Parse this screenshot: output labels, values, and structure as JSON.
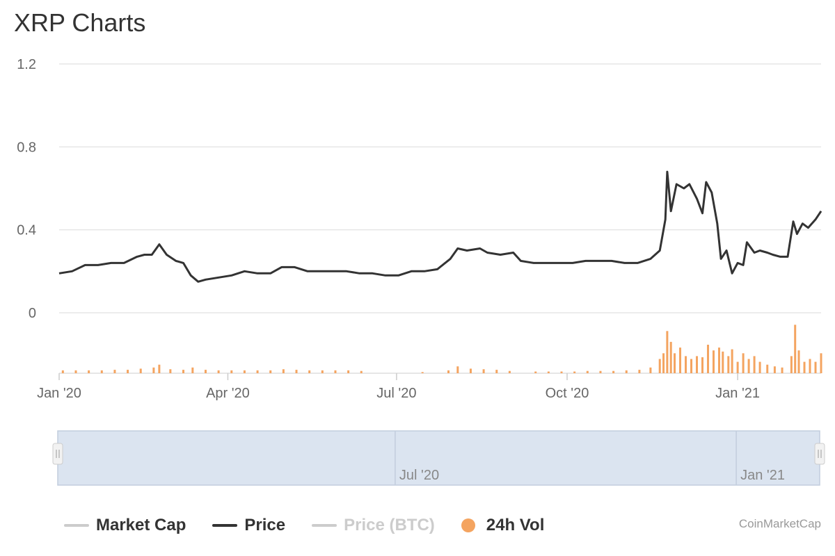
{
  "title": "XRP Charts",
  "credits": "CoinMarketCap",
  "colors": {
    "price": "#333333",
    "volume": "#f4a460",
    "grid": "#e6e6e6",
    "navigator_fill": "#dbe4f0",
    "navigator_border": "#c2cddd",
    "legend_inactive": "#cccccc"
  },
  "legend": [
    {
      "label": "Market Cap",
      "color": "#cccccc",
      "shape": "line",
      "active": true
    },
    {
      "label": "Price",
      "color": "#333333",
      "shape": "line",
      "active": true
    },
    {
      "label": "Price (BTC)",
      "color": "#cccccc",
      "shape": "line",
      "active": false
    },
    {
      "label": "24h Vol",
      "color": "#f4a460",
      "shape": "dot",
      "active": true
    }
  ],
  "navigator": {
    "labels": [
      "Jul '20",
      "Jan '21"
    ]
  },
  "chart_data": {
    "type": "line",
    "title": "XRP Charts",
    "x_start": "2020-01-01",
    "x_end": "2021-02-15",
    "ylim": [
      0,
      1.2
    ],
    "y_ticks": [
      "1.2",
      "0.8",
      "0.4",
      "0"
    ],
    "x_ticks": [
      "Jan '20",
      "Apr '20",
      "Jul '20",
      "Oct '20",
      "Jan '21"
    ],
    "grid": true,
    "legend_position": "bottom",
    "series": [
      {
        "name": "Price",
        "points": [
          [
            "2020-01-01",
            0.19
          ],
          [
            "2020-01-08",
            0.2
          ],
          [
            "2020-01-15",
            0.23
          ],
          [
            "2020-01-22",
            0.23
          ],
          [
            "2020-01-29",
            0.24
          ],
          [
            "2020-02-05",
            0.24
          ],
          [
            "2020-02-12",
            0.27
          ],
          [
            "2020-02-16",
            0.28
          ],
          [
            "2020-02-20",
            0.28
          ],
          [
            "2020-02-24",
            0.33
          ],
          [
            "2020-02-28",
            0.28
          ],
          [
            "2020-03-04",
            0.25
          ],
          [
            "2020-03-08",
            0.24
          ],
          [
            "2020-03-12",
            0.18
          ],
          [
            "2020-03-16",
            0.15
          ],
          [
            "2020-03-20",
            0.16
          ],
          [
            "2020-03-27",
            0.17
          ],
          [
            "2020-04-03",
            0.18
          ],
          [
            "2020-04-10",
            0.2
          ],
          [
            "2020-04-17",
            0.19
          ],
          [
            "2020-04-24",
            0.19
          ],
          [
            "2020-04-30",
            0.22
          ],
          [
            "2020-05-07",
            0.22
          ],
          [
            "2020-05-14",
            0.2
          ],
          [
            "2020-05-21",
            0.2
          ],
          [
            "2020-05-28",
            0.2
          ],
          [
            "2020-06-04",
            0.2
          ],
          [
            "2020-06-11",
            0.19
          ],
          [
            "2020-06-18",
            0.19
          ],
          [
            "2020-06-25",
            0.18
          ],
          [
            "2020-07-02",
            0.18
          ],
          [
            "2020-07-09",
            0.2
          ],
          [
            "2020-07-16",
            0.2
          ],
          [
            "2020-07-23",
            0.21
          ],
          [
            "2020-07-30",
            0.26
          ],
          [
            "2020-08-03",
            0.31
          ],
          [
            "2020-08-08",
            0.3
          ],
          [
            "2020-08-15",
            0.31
          ],
          [
            "2020-08-19",
            0.29
          ],
          [
            "2020-08-26",
            0.28
          ],
          [
            "2020-09-02",
            0.29
          ],
          [
            "2020-09-06",
            0.25
          ],
          [
            "2020-09-13",
            0.24
          ],
          [
            "2020-09-20",
            0.24
          ],
          [
            "2020-09-27",
            0.24
          ],
          [
            "2020-10-04",
            0.24
          ],
          [
            "2020-10-11",
            0.25
          ],
          [
            "2020-10-18",
            0.25
          ],
          [
            "2020-10-25",
            0.25
          ],
          [
            "2020-11-01",
            0.24
          ],
          [
            "2020-11-08",
            0.24
          ],
          [
            "2020-11-15",
            0.26
          ],
          [
            "2020-11-20",
            0.3
          ],
          [
            "2020-11-23",
            0.45
          ],
          [
            "2020-11-24",
            0.68
          ],
          [
            "2020-11-26",
            0.49
          ],
          [
            "2020-11-29",
            0.62
          ],
          [
            "2020-12-03",
            0.6
          ],
          [
            "2020-12-06",
            0.62
          ],
          [
            "2020-12-10",
            0.55
          ],
          [
            "2020-12-13",
            0.48
          ],
          [
            "2020-12-15",
            0.63
          ],
          [
            "2020-12-18",
            0.58
          ],
          [
            "2020-12-21",
            0.43
          ],
          [
            "2020-12-23",
            0.26
          ],
          [
            "2020-12-26",
            0.3
          ],
          [
            "2020-12-29",
            0.19
          ],
          [
            "2021-01-01",
            0.24
          ],
          [
            "2021-01-04",
            0.23
          ],
          [
            "2021-01-06",
            0.34
          ],
          [
            "2021-01-10",
            0.29
          ],
          [
            "2021-01-13",
            0.3
          ],
          [
            "2021-01-17",
            0.29
          ],
          [
            "2021-01-20",
            0.28
          ],
          [
            "2021-01-24",
            0.27
          ],
          [
            "2021-01-28",
            0.27
          ],
          [
            "2021-01-31",
            0.44
          ],
          [
            "2021-02-02",
            0.38
          ],
          [
            "2021-02-05",
            0.43
          ],
          [
            "2021-02-08",
            0.41
          ],
          [
            "2021-02-12",
            0.45
          ],
          [
            "2021-02-15",
            0.49
          ]
        ]
      },
      {
        "name": "24h Vol",
        "type": "bar",
        "points": [
          [
            "2020-01-03",
            0.05
          ],
          [
            "2020-01-10",
            0.05
          ],
          [
            "2020-01-17",
            0.05
          ],
          [
            "2020-01-24",
            0.05
          ],
          [
            "2020-01-31",
            0.06
          ],
          [
            "2020-02-07",
            0.06
          ],
          [
            "2020-02-14",
            0.08
          ],
          [
            "2020-02-21",
            0.1
          ],
          [
            "2020-02-24",
            0.15
          ],
          [
            "2020-03-01",
            0.07
          ],
          [
            "2020-03-08",
            0.06
          ],
          [
            "2020-03-13",
            0.1
          ],
          [
            "2020-03-20",
            0.06
          ],
          [
            "2020-03-27",
            0.05
          ],
          [
            "2020-04-03",
            0.05
          ],
          [
            "2020-04-10",
            0.05
          ],
          [
            "2020-04-17",
            0.05
          ],
          [
            "2020-04-24",
            0.05
          ],
          [
            "2020-05-01",
            0.07
          ],
          [
            "2020-05-08",
            0.06
          ],
          [
            "2020-05-15",
            0.05
          ],
          [
            "2020-05-22",
            0.05
          ],
          [
            "2020-05-29",
            0.05
          ],
          [
            "2020-06-05",
            0.05
          ],
          [
            "2020-06-12",
            0.04
          ],
          [
            "2020-07-15",
            0.02
          ],
          [
            "2020-07-29",
            0.05
          ],
          [
            "2020-08-03",
            0.12
          ],
          [
            "2020-08-10",
            0.08
          ],
          [
            "2020-08-17",
            0.07
          ],
          [
            "2020-08-24",
            0.06
          ],
          [
            "2020-08-31",
            0.04
          ],
          [
            "2020-09-14",
            0.03
          ],
          [
            "2020-09-21",
            0.03
          ],
          [
            "2020-09-28",
            0.03
          ],
          [
            "2020-10-05",
            0.03
          ],
          [
            "2020-10-12",
            0.04
          ],
          [
            "2020-10-19",
            0.04
          ],
          [
            "2020-10-26",
            0.04
          ],
          [
            "2020-11-02",
            0.05
          ],
          [
            "2020-11-09",
            0.06
          ],
          [
            "2020-11-15",
            0.1
          ],
          [
            "2020-11-20",
            0.25
          ],
          [
            "2020-11-22",
            0.35
          ],
          [
            "2020-11-24",
            0.74
          ],
          [
            "2020-11-26",
            0.55
          ],
          [
            "2020-11-28",
            0.35
          ],
          [
            "2020-12-01",
            0.45
          ],
          [
            "2020-12-04",
            0.3
          ],
          [
            "2020-12-07",
            0.25
          ],
          [
            "2020-12-10",
            0.3
          ],
          [
            "2020-12-13",
            0.28
          ],
          [
            "2020-12-16",
            0.5
          ],
          [
            "2020-12-19",
            0.4
          ],
          [
            "2020-12-22",
            0.45
          ],
          [
            "2020-12-24",
            0.38
          ],
          [
            "2020-12-27",
            0.3
          ],
          [
            "2020-12-29",
            0.42
          ],
          [
            "2021-01-01",
            0.2
          ],
          [
            "2021-01-04",
            0.35
          ],
          [
            "2021-01-07",
            0.25
          ],
          [
            "2021-01-10",
            0.3
          ],
          [
            "2021-01-13",
            0.2
          ],
          [
            "2021-01-17",
            0.15
          ],
          [
            "2021-01-21",
            0.12
          ],
          [
            "2021-01-25",
            0.1
          ],
          [
            "2021-01-30",
            0.3
          ],
          [
            "2021-02-01",
            0.85
          ],
          [
            "2021-02-03",
            0.4
          ],
          [
            "2021-02-06",
            0.2
          ],
          [
            "2021-02-09",
            0.25
          ],
          [
            "2021-02-12",
            0.2
          ],
          [
            "2021-02-15",
            0.35
          ]
        ]
      }
    ]
  }
}
